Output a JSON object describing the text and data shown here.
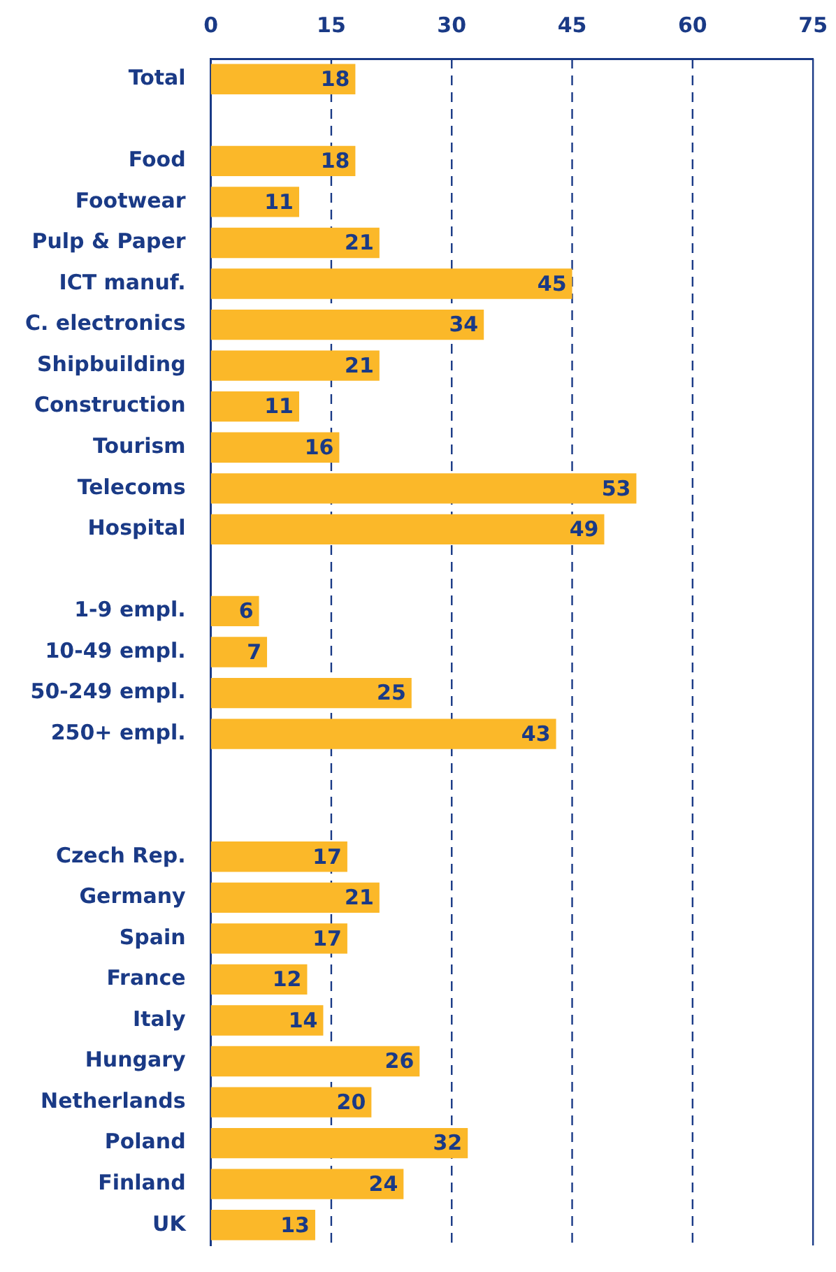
{
  "chart_data": {
    "type": "bar",
    "orientation": "horizontal",
    "categories": [
      "Total",
      null,
      "Food",
      "Footwear",
      "Pulp & Paper",
      "ICT manuf.",
      "C. electronics",
      "Shipbuilding",
      "Construction",
      "Tourism",
      "Telecoms",
      "Hospital",
      null,
      "1-9 empl.",
      "10-49 empl.",
      "50-249 empl.",
      "250+ empl.",
      null,
      null,
      "Czech Rep.",
      "Germany",
      "Spain",
      "France",
      "Italy",
      "Hungary",
      "Netherlands",
      "Poland",
      "Finland",
      "UK"
    ],
    "values": [
      18,
      null,
      18,
      11,
      21,
      45,
      34,
      21,
      11,
      16,
      53,
      49,
      null,
      6,
      7,
      25,
      43,
      null,
      null,
      17,
      21,
      17,
      12,
      14,
      26,
      20,
      32,
      24,
      13
    ],
    "color": "#fbb829",
    "xlim": [
      0,
      75
    ],
    "xticks": [
      0,
      15,
      30,
      45,
      60,
      75
    ],
    "grid": "x",
    "line_style": "dashed",
    "data_labels": true,
    "legend": false
  }
}
